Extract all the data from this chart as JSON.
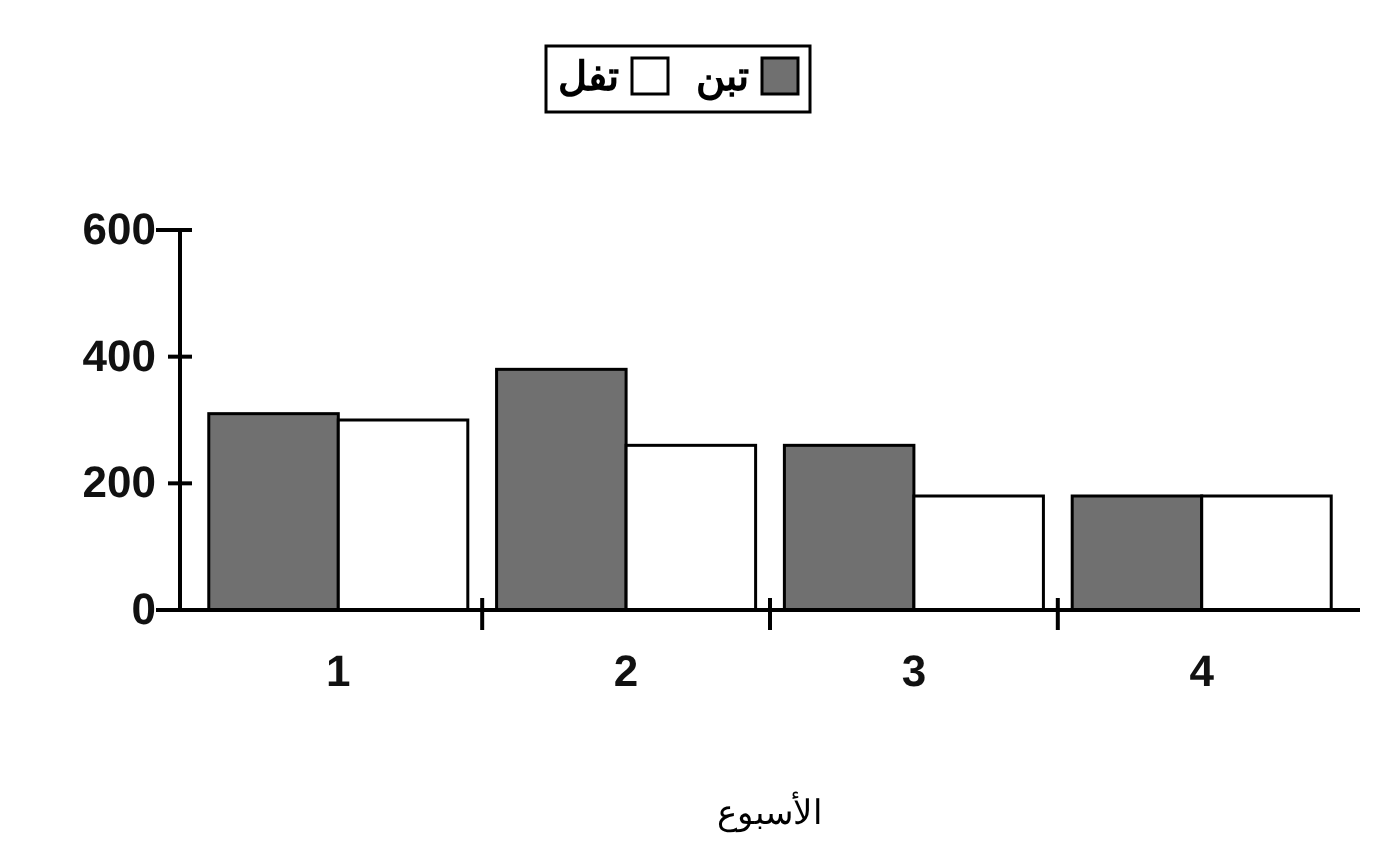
{
  "chart_data": {
    "type": "bar",
    "categories": [
      "1",
      "2",
      "3",
      "4"
    ],
    "xlabel": "الأسبوع",
    "ylim": [
      0,
      600
    ],
    "yticks": [
      0,
      200,
      400,
      600
    ],
    "grid": false,
    "legend": "top",
    "series": [
      {
        "name": "تبن",
        "color": "#707070",
        "values": [
          310,
          380,
          260,
          180
        ]
      },
      {
        "name": "تفل",
        "color": "#ffffff",
        "values": [
          300,
          260,
          180,
          180
        ]
      }
    ]
  }
}
